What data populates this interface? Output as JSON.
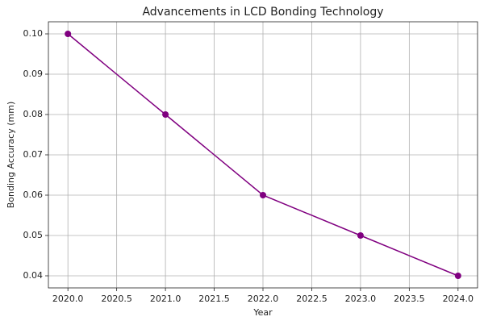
{
  "chart_data": {
    "type": "line",
    "title": "Advancements in LCD Bonding Technology",
    "x_label": "Year",
    "y_label": "Bonding Accuracy (mm)",
    "x": [
      2020,
      2021,
      2022,
      2023,
      2024
    ],
    "values": [
      0.1,
      0.08,
      0.06,
      0.05,
      0.04
    ],
    "color": "#800080",
    "marker": "o",
    "grid": true,
    "xlim": [
      2019.8,
      2024.2
    ],
    "xticks": [
      {
        "value": 2020,
        "label": "2020.0"
      },
      {
        "value": 2020.5,
        "label": "2020.5"
      },
      {
        "value": 2021,
        "label": "2021.0"
      },
      {
        "value": 2021.5,
        "label": "2021.5"
      },
      {
        "value": 2022,
        "label": "2022.0"
      },
      {
        "value": 2022.5,
        "label": "2022.5"
      },
      {
        "value": 2023,
        "label": "2023.0"
      },
      {
        "value": 2023.5,
        "label": "2023.5"
      },
      {
        "value": 2024,
        "label": "2024.0"
      }
    ],
    "ylim": [
      0.037,
      0.103
    ],
    "yticks": [
      0.04,
      0.05,
      0.06,
      0.07,
      0.08,
      0.09,
      {
        "value": 0.1,
        "label": "0.10"
      }
    ]
  }
}
